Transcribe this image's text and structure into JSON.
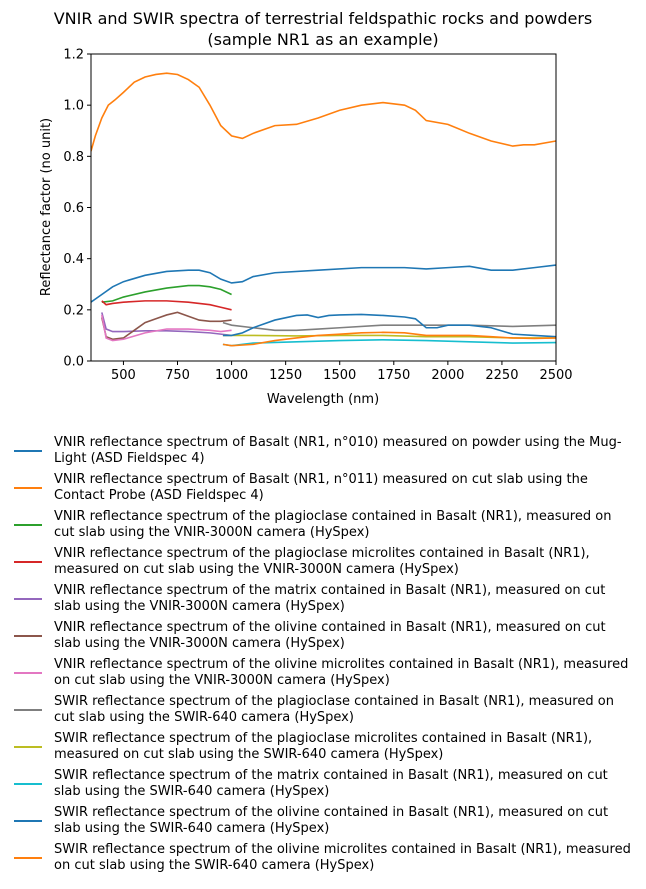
{
  "chart_data": {
    "type": "line",
    "title": "VNIR and SWIR spectra of terrestrial feldspathic rocks and powders\n(sample NR1 as an example)",
    "x_label": "Wavelength (nm)",
    "y_label": "Reflectance factor (no unit)",
    "xlim": [
      350,
      2500
    ],
    "ylim": [
      0,
      1.2
    ],
    "xticks": [
      500,
      750,
      1000,
      1250,
      1500,
      1750,
      2000,
      2250,
      2500
    ],
    "yticks": [
      {
        "value": 0,
        "label": "0.0"
      },
      {
        "value": 0.2,
        "label": "0.2"
      },
      {
        "value": 0.4,
        "label": "0.4"
      },
      {
        "value": 0.6,
        "label": "0.6"
      },
      {
        "value": 0.8,
        "label": "0.8"
      },
      {
        "value": 1.0,
        "label": "1.0"
      },
      {
        "value": 1.2,
        "label": "1.2"
      }
    ],
    "legend": "below",
    "series": [
      {
        "name": "VNIR reflectance spectrum of Basalt (NR1, n°010) measured on powder using the Mug-Light (ASD Fieldspec 4)",
        "color": "#1f77b4",
        "x": [
          350,
          400,
          450,
          500,
          600,
          700,
          800,
          850,
          900,
          950,
          1000,
          1050,
          1100,
          1200,
          1400,
          1600,
          1800,
          1900,
          2000,
          2100,
          2200,
          2300,
          2400,
          2500
        ],
        "values": [
          0.23,
          0.26,
          0.29,
          0.31,
          0.335,
          0.35,
          0.355,
          0.355,
          0.345,
          0.32,
          0.305,
          0.31,
          0.33,
          0.345,
          0.355,
          0.365,
          0.365,
          0.36,
          0.365,
          0.37,
          0.355,
          0.355,
          0.365,
          0.375
        ]
      },
      {
        "name": "VNIR reflectance spectrum of Basalt (NR1, n°011) measured on cut slab using the Contact Probe (ASD Fieldspec 4)",
        "color": "#ff7f0e",
        "x": [
          350,
          370,
          400,
          430,
          460,
          500,
          550,
          600,
          650,
          700,
          750,
          800,
          850,
          900,
          950,
          1000,
          1050,
          1100,
          1200,
          1300,
          1400,
          1500,
          1600,
          1700,
          1800,
          1850,
          1900,
          2000,
          2100,
          2200,
          2300,
          2350,
          2400,
          2500
        ],
        "values": [
          0.82,
          0.88,
          0.95,
          1.0,
          1.02,
          1.05,
          1.09,
          1.11,
          1.12,
          1.125,
          1.12,
          1.1,
          1.07,
          1.0,
          0.92,
          0.88,
          0.87,
          0.89,
          0.92,
          0.925,
          0.95,
          0.98,
          1.0,
          1.01,
          1.0,
          0.98,
          0.94,
          0.925,
          0.89,
          0.86,
          0.84,
          0.845,
          0.845,
          0.86
        ]
      },
      {
        "name": "VNIR reflectance spectrum of the plagioclase contained in Basalt (NR1), measured on cut slab using the VNIR-3000N camera (HySpex)",
        "color": "#2ca02c",
        "x": [
          400,
          450,
          500,
          600,
          700,
          800,
          850,
          900,
          950,
          1000
        ],
        "values": [
          0.23,
          0.235,
          0.25,
          0.27,
          0.285,
          0.295,
          0.295,
          0.29,
          0.28,
          0.26
        ]
      },
      {
        "name": "VNIR reflectance spectrum of the plagioclase microlites contained in Basalt (NR1), measured on cut slab using the VNIR-3000N camera (HySpex)",
        "color": "#d62728",
        "x": [
          400,
          420,
          450,
          500,
          600,
          700,
          800,
          850,
          900,
          950,
          1000
        ],
        "values": [
          0.235,
          0.22,
          0.225,
          0.23,
          0.235,
          0.235,
          0.23,
          0.225,
          0.22,
          0.21,
          0.2
        ]
      },
      {
        "name": "VNIR reflectance spectrum of the matrix contained in Basalt (NR1), measured on cut slab using the VNIR-3000N camera (HySpex)",
        "color": "#9467bd",
        "x": [
          400,
          420,
          450,
          500,
          600,
          700,
          800,
          900,
          950,
          1000
        ],
        "values": [
          0.19,
          0.125,
          0.115,
          0.115,
          0.118,
          0.118,
          0.115,
          0.11,
          0.105,
          0.1
        ]
      },
      {
        "name": "VNIR reflectance spectrum of the olivine contained in Basalt (NR1), measured on cut slab using the VNIR-3000N camera (HySpex)",
        "color": "#8c564b",
        "x": [
          400,
          420,
          450,
          500,
          550,
          600,
          650,
          700,
          750,
          800,
          850,
          900,
          950,
          1000
        ],
        "values": [
          0.17,
          0.095,
          0.085,
          0.09,
          0.12,
          0.15,
          0.165,
          0.18,
          0.19,
          0.175,
          0.16,
          0.155,
          0.155,
          0.16
        ]
      },
      {
        "name": "VNIR reflectance spectrum of the olivine microlites contained in Basalt (NR1), measured on cut slab using the VNIR-3000N camera (HySpex)",
        "color": "#e377c2",
        "x": [
          400,
          420,
          450,
          500,
          600,
          700,
          800,
          900,
          950,
          1000
        ],
        "values": [
          0.18,
          0.09,
          0.08,
          0.085,
          0.11,
          0.125,
          0.125,
          0.12,
          0.115,
          0.12
        ]
      },
      {
        "name": "SWIR reflectance spectrum of the plagioclase contained in Basalt (NR1), measured on cut slab using the SWIR-640 camera (HySpex)",
        "color": "#7f7f7f",
        "x": [
          960,
          1000,
          1100,
          1200,
          1300,
          1400,
          1500,
          1700,
          1900,
          2100,
          2300,
          2500
        ],
        "values": [
          0.15,
          0.14,
          0.13,
          0.12,
          0.12,
          0.125,
          0.13,
          0.14,
          0.14,
          0.14,
          0.135,
          0.14
        ]
      },
      {
        "name": "SWIR reflectance spectrum of the plagioclase microlites contained in Basalt (NR1), measured on cut slab using the SWIR-640 camera (HySpex)",
        "color": "#bcbd22",
        "x": [
          960,
          1000,
          1100,
          1300,
          1500,
          1700,
          1900,
          2100,
          2300,
          2500
        ],
        "values": [
          0.1,
          0.1,
          0.1,
          0.098,
          0.1,
          0.1,
          0.095,
          0.095,
          0.09,
          0.09
        ]
      },
      {
        "name": "SWIR reflectance spectrum of the matrix contained in Basalt (NR1), measured on cut slab using the SWIR-640 camera (HySpex)",
        "color": "#17becf",
        "x": [
          960,
          1000,
          1100,
          1300,
          1500,
          1700,
          1900,
          2100,
          2300,
          2500
        ],
        "values": [
          0.065,
          0.06,
          0.07,
          0.075,
          0.08,
          0.083,
          0.08,
          0.075,
          0.07,
          0.072
        ]
      },
      {
        "name": "SWIR reflectance spectrum of the olivine contained in Basalt (NR1), measured on cut slab using the SWIR-640 camera (HySpex)",
        "color": "#1f77b4",
        "x": [
          960,
          1000,
          1050,
          1100,
          1200,
          1300,
          1350,
          1400,
          1450,
          1500,
          1600,
          1700,
          1800,
          1850,
          1900,
          1950,
          2000,
          2100,
          2200,
          2300,
          2400,
          2500
        ],
        "values": [
          0.1,
          0.1,
          0.11,
          0.13,
          0.16,
          0.178,
          0.18,
          0.17,
          0.178,
          0.18,
          0.182,
          0.178,
          0.172,
          0.165,
          0.13,
          0.13,
          0.14,
          0.14,
          0.13,
          0.105,
          0.1,
          0.095
        ]
      },
      {
        "name": "SWIR reflectance spectrum of the olivine microlites contained in Basalt (NR1), measured on cut slab using the SWIR-640 camera (HySpex)",
        "color": "#ff7f0e",
        "x": [
          960,
          1000,
          1100,
          1200,
          1300,
          1400,
          1500,
          1600,
          1700,
          1800,
          1900,
          2000,
          2100,
          2200,
          2300,
          2400,
          2500
        ],
        "values": [
          0.065,
          0.06,
          0.065,
          0.08,
          0.09,
          0.1,
          0.105,
          0.11,
          0.112,
          0.11,
          0.1,
          0.1,
          0.1,
          0.095,
          0.09,
          0.088,
          0.09
        ]
      }
    ]
  }
}
